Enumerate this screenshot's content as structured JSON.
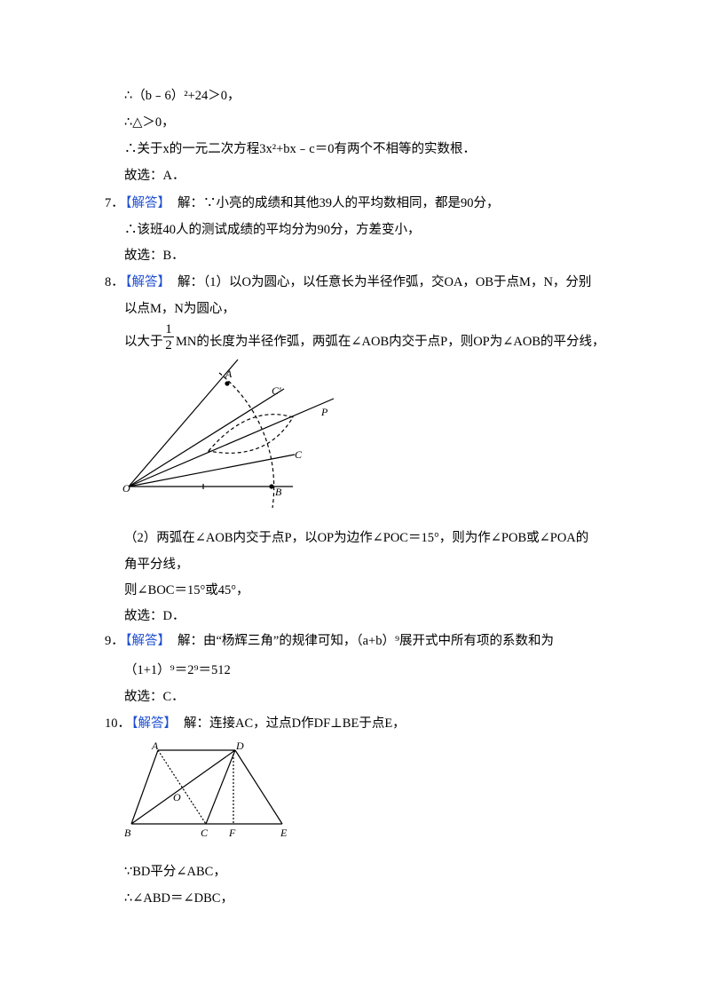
{
  "intro_lines": [
    "∴（b﹣6）²+24＞0，",
    "∴△＞0，",
    "∴关于x的一元二次方程3x²+bx﹣c＝0有两个不相等的实数根．",
    "故选：A．"
  ],
  "items": [
    {
      "number": "7．",
      "tag": "【解答】",
      "lines": [
        "解：∵小亮的成绩和其他39人的平均数相同，都是90分，",
        "∴该班40人的测试成绩的平均分为90分，方差变小，",
        "故选：B．"
      ]
    },
    {
      "number": "8．",
      "tag": "【解答】",
      "lines": [
        "解：（1）以O为圆心，以任意长为半径作弧，交OA，OB于点M，N，分别",
        "以点M，N为圆心，"
      ],
      "fraction_line": {
        "before": "以大于",
        "numerator": "1",
        "denominator": "2",
        "after": "MN的长度为半径作弧，两弧在∠AOB内交于点P，则OP为∠AOB的平分线，"
      },
      "figure_labels": {
        "a": "A",
        "c_prime": "C′",
        "p": "P",
        "c": "C",
        "o": "O",
        "b": "B"
      },
      "after_lines": [
        "（2）两弧在∠AOB内交于点P，以OP为边作∠POC＝15°，则为作∠POB或∠POA的",
        "角平分线，",
        "则∠BOC＝15°或45°，",
        "故选：D．"
      ]
    },
    {
      "number": "9．",
      "tag": "【解答】",
      "lines": [
        "解：由“杨辉三角”的规律可知，（a+b）⁹展开式中所有项的系数和为",
        "（1+1）⁹＝2⁹＝512",
        "故选：C．"
      ]
    },
    {
      "number": "10．",
      "tag": "【解答】",
      "lines": [
        "解：连接AC，过点D作DF⊥BE于点E，"
      ],
      "figure_labels": {
        "a": "A",
        "d": "D",
        "o": "O",
        "b": "B",
        "c": "C",
        "f": "F",
        "e": "E"
      },
      "after_lines": [
        "∵BD平分∠ABC，",
        "∴∠ABD＝∠DBC，"
      ]
    }
  ]
}
